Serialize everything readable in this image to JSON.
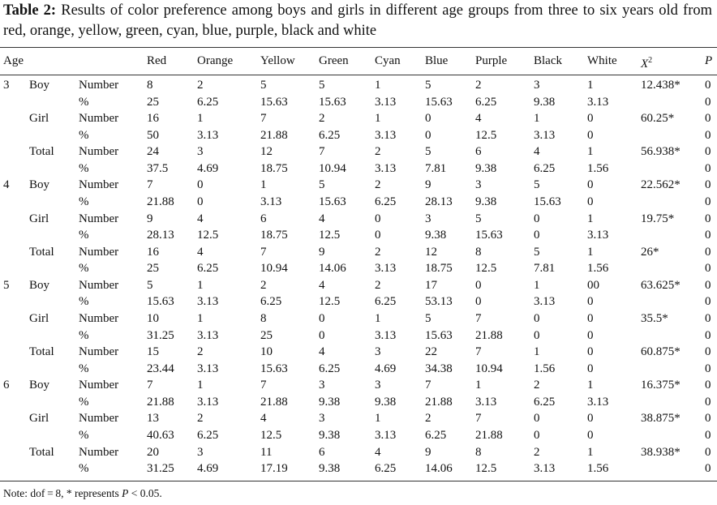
{
  "caption": {
    "label": "Table 2:",
    "text": "Results of color preference among boys and girls in different age groups from three to six years old from red, orange, yellow, green, cyan, blue, purple, black and white"
  },
  "table": {
    "age_header": "Age",
    "colors": [
      "Red",
      "Orange",
      "Yellow",
      "Green",
      "Cyan",
      "Blue",
      "Purple",
      "Black",
      "White"
    ],
    "chi_header": {
      "base": "X",
      "sup": "2"
    },
    "p_header": "P",
    "groups": [
      {
        "age": "3",
        "subgroups": [
          {
            "sex": "Boy",
            "lines": [
              {
                "measure": "Number",
                "cells": [
                  8,
                  2,
                  5,
                  5,
                  1,
                  5,
                  2,
                  3,
                  1
                ],
                "chi": "12.438*",
                "p": 0
              },
              {
                "measure": "%",
                "cells": [
                  25,
                  6.25,
                  15.63,
                  15.63,
                  3.13,
                  15.63,
                  6.25,
                  9.38,
                  3.13
                ],
                "p": 0
              }
            ]
          },
          {
            "sex": "Girl",
            "lines": [
              {
                "measure": "Number",
                "cells": [
                  16,
                  1,
                  7,
                  2,
                  1,
                  0,
                  4,
                  1,
                  0
                ],
                "chi": "60.25*",
                "p": 0
              },
              {
                "measure": "%",
                "cells": [
                  50,
                  3.13,
                  21.88,
                  6.25,
                  3.13,
                  0,
                  12.5,
                  3.13,
                  0
                ],
                "p": 0
              }
            ]
          },
          {
            "sex": "Total",
            "lines": [
              {
                "measure": "Number",
                "cells": [
                  24,
                  3,
                  12,
                  7,
                  2,
                  5,
                  6,
                  4,
                  1
                ],
                "chi": "56.938*",
                "p": 0
              },
              {
                "measure": "%",
                "cells": [
                  37.5,
                  4.69,
                  18.75,
                  10.94,
                  3.13,
                  7.81,
                  9.38,
                  6.25,
                  1.56
                ],
                "p": 0
              }
            ]
          }
        ]
      },
      {
        "age": "4",
        "subgroups": [
          {
            "sex": "Boy",
            "lines": [
              {
                "measure": "Number",
                "cells": [
                  7,
                  0,
                  1,
                  5,
                  2,
                  9,
                  3,
                  5,
                  0
                ],
                "chi": "22.562*",
                "p": 0
              },
              {
                "measure": "%",
                "cells": [
                  21.88,
                  0,
                  3.13,
                  15.63,
                  6.25,
                  28.13,
                  9.38,
                  15.63,
                  0
                ],
                "p": 0
              }
            ]
          },
          {
            "sex": "Girl",
            "lines": [
              {
                "measure": "Number",
                "cells": [
                  9,
                  4,
                  6,
                  4,
                  0,
                  3,
                  5,
                  0,
                  1
                ],
                "chi": "19.75*",
                "p": 0
              },
              {
                "measure": "%",
                "cells": [
                  28.13,
                  12.5,
                  18.75,
                  12.5,
                  0,
                  9.38,
                  15.63,
                  0,
                  3.13
                ],
                "p": 0
              }
            ]
          },
          {
            "sex": "Total",
            "lines": [
              {
                "measure": "Number",
                "cells": [
                  16,
                  4,
                  7,
                  9,
                  2,
                  12,
                  8,
                  5,
                  1
                ],
                "chi": "26*",
                "p": 0
              },
              {
                "measure": "%",
                "cells": [
                  25,
                  6.25,
                  10.94,
                  14.06,
                  3.13,
                  18.75,
                  12.5,
                  7.81,
                  1.56
                ],
                "p": 0
              }
            ]
          }
        ]
      },
      {
        "age": "5",
        "subgroups": [
          {
            "sex": "Boy",
            "lines": [
              {
                "measure": "Number",
                "cells": [
                  5,
                  1,
                  2,
                  4,
                  2,
                  17,
                  0,
                  1,
                  "00"
                ],
                "chi": "63.625*",
                "p": 0
              },
              {
                "measure": "%",
                "cells": [
                  15.63,
                  3.13,
                  6.25,
                  12.5,
                  6.25,
                  53.13,
                  0,
                  3.13,
                  0
                ],
                "p": 0
              }
            ]
          },
          {
            "sex": "Girl",
            "lines": [
              {
                "measure": "Number",
                "cells": [
                  10,
                  1,
                  8,
                  0,
                  1,
                  5,
                  7,
                  0,
                  0
                ],
                "chi": "35.5*",
                "p": 0
              },
              {
                "measure": "%",
                "cells": [
                  31.25,
                  3.13,
                  25,
                  0,
                  3.13,
                  15.63,
                  21.88,
                  0,
                  0
                ],
                "p": 0
              }
            ]
          },
          {
            "sex": "Total",
            "lines": [
              {
                "measure": "Number",
                "cells": [
                  15,
                  2,
                  10,
                  4,
                  3,
                  22,
                  7,
                  1,
                  0
                ],
                "chi": "60.875*",
                "p": 0
              },
              {
                "measure": "%",
                "cells": [
                  23.44,
                  3.13,
                  15.63,
                  6.25,
                  4.69,
                  34.38,
                  10.94,
                  1.56,
                  0
                ],
                "p": 0
              }
            ]
          }
        ]
      },
      {
        "age": "6",
        "subgroups": [
          {
            "sex": "Boy",
            "lines": [
              {
                "measure": "Number",
                "cells": [
                  7,
                  1,
                  7,
                  3,
                  3,
                  7,
                  1,
                  2,
                  1
                ],
                "chi": "16.375*",
                "p": 0
              },
              {
                "measure": "%",
                "cells": [
                  21.88,
                  3.13,
                  21.88,
                  9.38,
                  9.38,
                  21.88,
                  3.13,
                  6.25,
                  3.13
                ],
                "p": 0
              }
            ]
          },
          {
            "sex": "Girl",
            "lines": [
              {
                "measure": "Number",
                "cells": [
                  13,
                  2,
                  4,
                  3,
                  1,
                  2,
                  7,
                  0,
                  0
                ],
                "chi": "38.875*",
                "p": 0
              },
              {
                "measure": "%",
                "cells": [
                  40.63,
                  6.25,
                  12.5,
                  9.38,
                  3.13,
                  6.25,
                  21.88,
                  0,
                  0
                ],
                "p": 0
              }
            ]
          },
          {
            "sex": "Total",
            "lines": [
              {
                "measure": "Number",
                "cells": [
                  20,
                  3,
                  11,
                  6,
                  4,
                  9,
                  8,
                  2,
                  1
                ],
                "chi": "38.938*",
                "p": 0
              },
              {
                "measure": "%",
                "cells": [
                  31.25,
                  4.69,
                  17.19,
                  9.38,
                  6.25,
                  14.06,
                  12.5,
                  3.13,
                  1.56
                ],
                "p": 0
              }
            ]
          }
        ]
      }
    ]
  },
  "note": {
    "prefix": "Note: dof = 8, * represents ",
    "var": "P",
    "suffix": " < 0.05."
  }
}
